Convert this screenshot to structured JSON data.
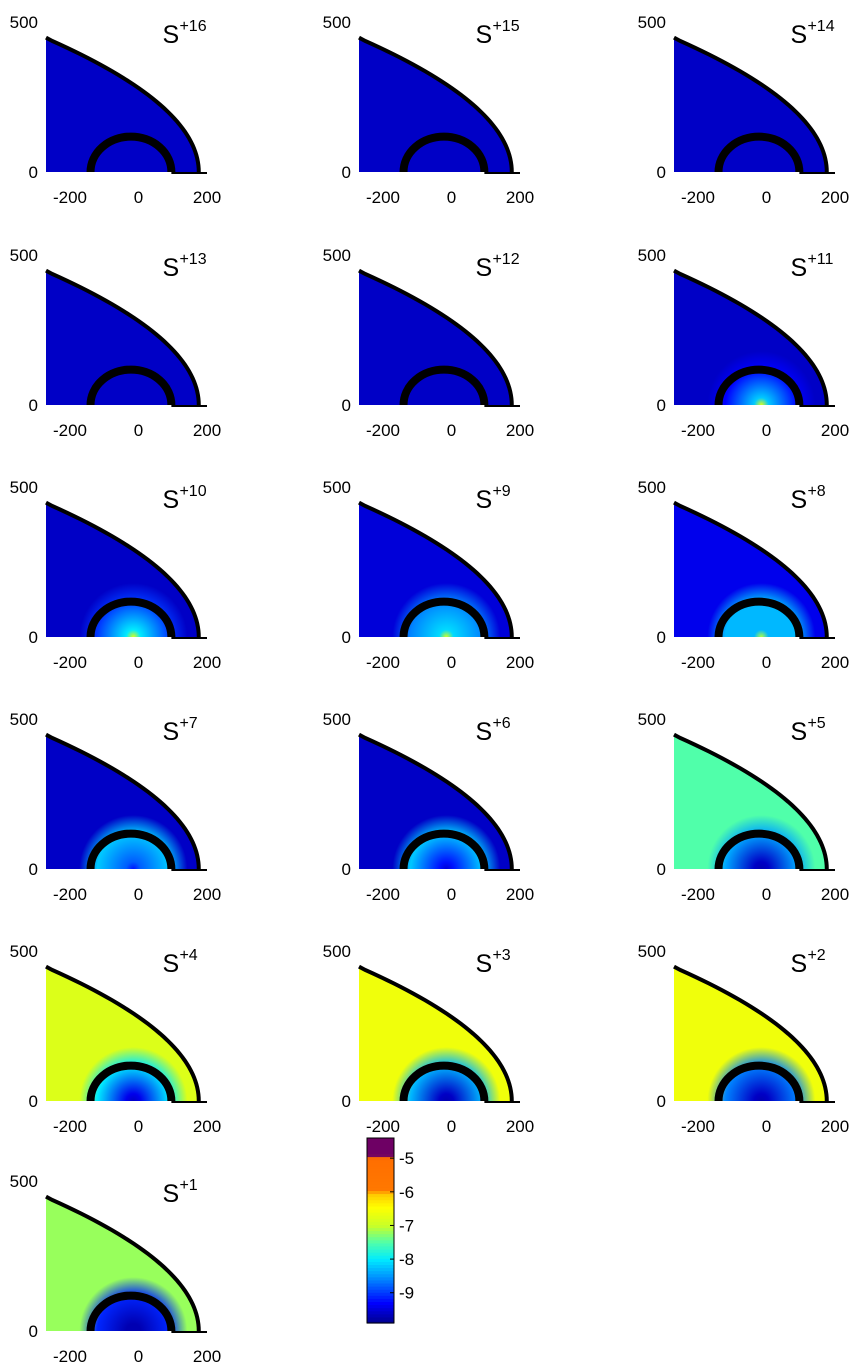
{
  "chart_data": {
    "type": "heatmap",
    "panel_xlim": [
      -270,
      200
    ],
    "panel_ylim": [
      0,
      500
    ],
    "x_ticks": [
      {
        "value": -200,
        "label": "-200"
      },
      {
        "value": 0,
        "label": "0"
      },
      {
        "value": 200,
        "label": "200"
      }
    ],
    "y_ticks": [
      {
        "value": 0,
        "label": "0"
      },
      {
        "value": 500,
        "label": "500"
      }
    ],
    "panels": [
      {
        "label": "S",
        "charge": "+16",
        "color_value_inner": -9.6,
        "color_value_mid": -9.6,
        "color_value_outer": -9.6,
        "inner_core": -9.6
      },
      {
        "label": "S",
        "charge": "+15",
        "color_value_inner": -9.6,
        "color_value_mid": -9.6,
        "color_value_outer": -9.6,
        "inner_core": -9.6
      },
      {
        "label": "S",
        "charge": "+14",
        "color_value_inner": -9.6,
        "color_value_mid": -9.6,
        "color_value_outer": -9.6,
        "inner_core": -9.6
      },
      {
        "label": "S",
        "charge": "+13",
        "color_value_inner": -9.6,
        "color_value_mid": -9.6,
        "color_value_outer": -9.6,
        "inner_core": -9.6
      },
      {
        "label": "S",
        "charge": "+12",
        "color_value_inner": -9.6,
        "color_value_mid": -9.6,
        "color_value_outer": -9.6,
        "inner_core": -9.6
      },
      {
        "label": "S",
        "charge": "+11",
        "color_value_inner": -8.2,
        "color_value_mid": -9.3,
        "color_value_outer": -9.6,
        "inner_core": -6.8
      },
      {
        "label": "S",
        "charge": "+10",
        "color_value_inner": -8.0,
        "color_value_mid": -9.0,
        "color_value_outer": -9.6,
        "inner_core": -6.8
      },
      {
        "label": "S",
        "charge": "+9",
        "color_value_inner": -8.1,
        "color_value_mid": -8.6,
        "color_value_outer": -9.5,
        "inner_core": -6.9
      },
      {
        "label": "S",
        "charge": "+8",
        "color_value_inner": -8.3,
        "color_value_mid": -8.3,
        "color_value_outer": -9.4,
        "inner_core": -7.1
      },
      {
        "label": "S",
        "charge": "+7",
        "color_value_inner": -8.8,
        "color_value_mid": -8.2,
        "color_value_outer": -9.6,
        "inner_core": -9.2
      },
      {
        "label": "S",
        "charge": "+6",
        "color_value_inner": -9.2,
        "color_value_mid": -8.2,
        "color_value_outer": -9.6,
        "inner_core": -9.5
      },
      {
        "label": "S",
        "charge": "+5",
        "color_value_inner": -9.6,
        "color_value_mid": -8.4,
        "color_value_outer": -7.5,
        "inner_core": -9.7
      },
      {
        "label": "S",
        "charge": "+4",
        "color_value_inner": -9.4,
        "color_value_mid": -8.0,
        "color_value_outer": -6.8,
        "inner_core": -9.6
      },
      {
        "label": "S",
        "charge": "+3",
        "color_value_inner": -9.6,
        "color_value_mid": -8.3,
        "color_value_outer": -6.6,
        "inner_core": -9.7
      },
      {
        "label": "S",
        "charge": "+2",
        "color_value_inner": -9.6,
        "color_value_mid": -8.6,
        "color_value_outer": -6.6,
        "inner_core": -9.7
      },
      {
        "label": "S",
        "charge": "+1",
        "color_value_inner": -9.7,
        "color_value_mid": -9.1,
        "color_value_outer": -7.2,
        "inner_core": -9.7
      }
    ],
    "colorbar": {
      "min": -9.9,
      "max": -4.4,
      "ticks": [
        {
          "value": -5,
          "label": "-5"
        },
        {
          "value": -6,
          "label": "-6"
        },
        {
          "value": -7,
          "label": "-7"
        },
        {
          "value": -8,
          "label": "-8"
        },
        {
          "value": -9,
          "label": "-9"
        }
      ],
      "colormap": "jet (extended with orange and purple at top)"
    }
  }
}
